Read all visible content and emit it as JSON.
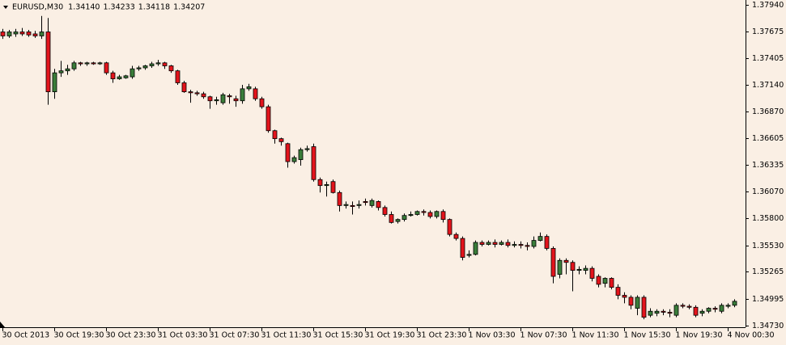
{
  "chart_data": {
    "type": "candlestick",
    "title": "EURUSD,M30",
    "quote": [
      {
        "value": 1.3414,
        "label": "1.34140"
      },
      {
        "value": 1.34233,
        "label": "1.34233"
      },
      {
        "value": 1.34118,
        "label": "1.34118"
      },
      {
        "value": 1.34207,
        "label": "1.34207"
      }
    ],
    "up_color": "#3a7d3a",
    "down_color": "#e3141c",
    "ylim": [
      1.3471,
      1.3799
    ],
    "yticks": [
      {
        "value": 1.3794,
        "label": "1.37940"
      },
      1.37675,
      1.37405,
      {
        "value": 1.3714,
        "label": "1.37140"
      },
      {
        "value": 1.3687,
        "label": "1.36870"
      },
      1.36605,
      1.36335,
      {
        "value": 1.3607,
        "label": "1.36070"
      },
      {
        "value": 1.358,
        "label": "1.35800"
      },
      {
        "value": 1.3553,
        "label": "1.35530"
      },
      1.35265,
      1.34995,
      {
        "value": 1.3473,
        "label": "1.34730"
      }
    ],
    "categories": [
      "30 Oct 2013",
      null,
      null,
      null,
      null,
      null,
      null,
      null,
      "30 Oct 19:30",
      null,
      null,
      null,
      null,
      null,
      null,
      null,
      "30 Oct 23:30",
      null,
      null,
      null,
      null,
      null,
      null,
      null,
      "31 Oct 03:30",
      null,
      null,
      null,
      null,
      null,
      null,
      null,
      "31 Oct 07:30",
      null,
      null,
      null,
      null,
      null,
      null,
      null,
      "31 Oct 11:30",
      null,
      null,
      null,
      null,
      null,
      null,
      null,
      "31 Oct 15:30",
      null,
      null,
      null,
      null,
      null,
      null,
      null,
      "31 Oct 19:30",
      null,
      null,
      null,
      null,
      null,
      null,
      null,
      "31 Oct 23:30",
      null,
      null,
      null,
      null,
      null,
      null,
      null,
      "1 Nov 03:30",
      null,
      null,
      null,
      null,
      null,
      null,
      null,
      "1 Nov 07:30",
      null,
      null,
      null,
      null,
      null,
      null,
      null,
      "1 Nov 11:30",
      null,
      null,
      null,
      null,
      null,
      null,
      null,
      "1 Nov 15:30",
      null,
      null,
      null,
      null,
      null,
      null,
      null,
      "1 Nov 19:30",
      null,
      null,
      null,
      null,
      null,
      null,
      null,
      "4 Nov 00:30",
      null
    ],
    "open": [
      1.3767,
      1.3763,
      1.3765,
      1.3767,
      1.3767,
      1.3765,
      1.3763,
      1.3767,
      1.3707,
      1.3726,
      1.3728,
      1.373,
      1.3736,
      1.3735,
      1.3736,
      1.3735,
      1.3736,
      1.3726,
      1.372,
      1.3721,
      1.3722,
      1.373,
      1.3731,
      1.3733,
      1.3735,
      1.3736,
      1.3733,
      1.3728,
      1.3716,
      1.3707,
      1.3706,
      1.3705,
      1.3702,
      1.3698,
      1.3696,
      1.3703,
      1.37,
      1.3698,
      1.371,
      1.371,
      1.37,
      1.3692,
      1.3668,
      1.366,
      1.3655,
      1.3637,
      1.3639,
      1.3649,
      1.3652,
      1.3619,
      1.3613,
      1.3617,
      1.3606,
      1.3593,
      1.3593,
      1.3593,
      1.3597,
      1.3593,
      1.3597,
      1.3591,
      1.3584,
      1.3577,
      1.3579,
      1.3583,
      1.3584,
      1.3587,
      1.3586,
      1.3582,
      1.3587,
      1.3579,
      1.3564,
      1.356,
      1.3543,
      1.3544,
      1.3556,
      1.3554,
      1.3556,
      1.3554,
      1.3556,
      1.3553,
      1.3554,
      1.3553,
      1.3552,
      1.3558,
      1.3562,
      1.355,
      1.3524,
      1.3538,
      1.3536,
      1.3528,
      1.3528,
      1.353,
      1.3522,
      1.3515,
      1.352,
      1.3511,
      1.3503,
      1.3501,
      1.349,
      1.3501,
      1.3483,
      1.3485,
      1.3487,
      1.3486,
      1.3483,
      1.3493,
      1.3492,
      1.3491,
      1.3485,
      1.3487,
      1.349,
      1.3487,
      1.3492,
      1.3493
    ],
    "high": [
      1.377,
      1.3769,
      1.377,
      1.3771,
      1.3769,
      1.3768,
      1.3783,
      1.3781,
      1.373,
      1.3738,
      1.3734,
      1.3738,
      1.3737,
      1.3737,
      1.3737,
      1.3737,
      1.3737,
      1.3728,
      1.3724,
      1.3724,
      1.3733,
      1.3733,
      1.3734,
      1.3737,
      1.3739,
      1.3737,
      1.3734,
      1.3729,
      1.3718,
      1.3709,
      1.3708,
      1.3707,
      1.3703,
      1.3702,
      1.3706,
      1.3705,
      1.3703,
      1.3714,
      1.3715,
      1.3712,
      1.3702,
      1.3694,
      1.3669,
      1.3661,
      1.3656,
      1.3643,
      1.3651,
      1.3653,
      1.3655,
      1.3621,
      1.3617,
      1.3619,
      1.3608,
      1.3597,
      1.3597,
      1.3598,
      1.36,
      1.36,
      1.3598,
      1.3593,
      1.3587,
      1.358,
      1.3585,
      1.3587,
      1.3588,
      1.3589,
      1.3588,
      1.3588,
      1.3589,
      1.358,
      1.3566,
      1.3562,
      1.3548,
      1.3558,
      1.3558,
      1.3558,
      1.3559,
      1.3558,
      1.3559,
      1.3557,
      1.3557,
      1.3556,
      1.3562,
      1.3566,
      1.3564,
      1.3552,
      1.354,
      1.354,
      1.3538,
      1.3532,
      1.3533,
      1.3532,
      1.3524,
      1.3521,
      1.3521,
      1.3514,
      1.3506,
      1.3503,
      1.3503,
      1.3503,
      1.349,
      1.3489,
      1.3489,
      1.3489,
      1.3495,
      1.3495,
      1.3494,
      1.3493,
      1.3489,
      1.3491,
      1.3492,
      1.3495,
      1.3495,
      1.3499
    ],
    "low": [
      1.376,
      1.3761,
      1.3762,
      1.3763,
      1.3762,
      1.3761,
      1.376,
      1.3694,
      1.37,
      1.3722,
      1.3724,
      1.3728,
      1.3733,
      1.3733,
      1.3734,
      1.3734,
      1.3724,
      1.3716,
      1.3719,
      1.372,
      1.372,
      1.3728,
      1.3729,
      1.3731,
      1.3733,
      1.373,
      1.3726,
      1.3714,
      1.3706,
      1.3696,
      1.3703,
      1.37,
      1.369,
      1.3694,
      1.3694,
      1.3695,
      1.3692,
      1.3695,
      1.3708,
      1.3698,
      1.369,
      1.3666,
      1.3655,
      1.3653,
      1.3631,
      1.3635,
      1.3633,
      1.3647,
      1.3617,
      1.3606,
      1.3602,
      1.3605,
      1.3587,
      1.359,
      1.3584,
      1.359,
      1.3593,
      1.3591,
      1.3588,
      1.3582,
      1.3575,
      1.3575,
      1.3577,
      1.3582,
      1.3583,
      1.3583,
      1.358,
      1.358,
      1.3576,
      1.3562,
      1.3558,
      1.3538,
      1.3541,
      1.3543,
      1.3552,
      1.3553,
      1.3551,
      1.3553,
      1.3551,
      1.3551,
      1.355,
      1.3548,
      1.355,
      1.3557,
      1.3548,
      1.3515,
      1.352,
      1.3524,
      1.3507,
      1.3524,
      1.3524,
      1.3517,
      1.3511,
      1.3511,
      1.3509,
      1.3499,
      1.3495,
      1.3489,
      1.3483,
      1.3479,
      1.3481,
      1.3482,
      1.3483,
      1.3481,
      1.3481,
      1.349,
      1.3489,
      1.3481,
      1.3482,
      1.3485,
      1.3486,
      1.3485,
      1.349,
      1.3491
    ],
    "close": [
      1.3763,
      1.3767,
      1.3767,
      1.3765,
      1.3764,
      1.3763,
      1.3767,
      1.3707,
      1.3726,
      1.3728,
      1.373,
      1.3736,
      1.3735,
      1.3736,
      1.3735,
      1.3736,
      1.3726,
      1.372,
      1.3722,
      1.3723,
      1.373,
      1.3731,
      1.3733,
      1.3735,
      1.3736,
      1.3733,
      1.3728,
      1.3716,
      1.3707,
      1.3706,
      1.3705,
      1.3702,
      1.3698,
      1.3699,
      1.3704,
      1.3702,
      1.3698,
      1.371,
      1.3712,
      1.37,
      1.3692,
      1.3668,
      1.366,
      1.3657,
      1.3637,
      1.3641,
      1.3649,
      1.365,
      1.3619,
      1.3613,
      1.3614,
      1.3606,
      1.3593,
      1.3594,
      1.3592,
      1.3594,
      1.3596,
      1.3598,
      1.3591,
      1.3584,
      1.3576,
      1.3579,
      1.3583,
      1.3584,
      1.3587,
      1.3586,
      1.3582,
      1.3587,
      1.3579,
      1.3564,
      1.356,
      1.3541,
      1.3544,
      1.3556,
      1.3554,
      1.3556,
      1.3554,
      1.3556,
      1.3553,
      1.3554,
      1.3553,
      1.3552,
      1.3558,
      1.3562,
      1.355,
      1.3522,
      1.3538,
      1.3536,
      1.3528,
      1.3529,
      1.353,
      1.352,
      1.3514,
      1.352,
      1.3511,
      1.3503,
      1.3501,
      1.3493,
      1.3501,
      1.3481,
      1.3487,
      1.3487,
      1.3486,
      1.3485,
      1.3493,
      1.3492,
      1.3491,
      1.3483,
      1.3487,
      1.349,
      1.3489,
      1.3493,
      1.3493,
      1.3497
    ]
  }
}
